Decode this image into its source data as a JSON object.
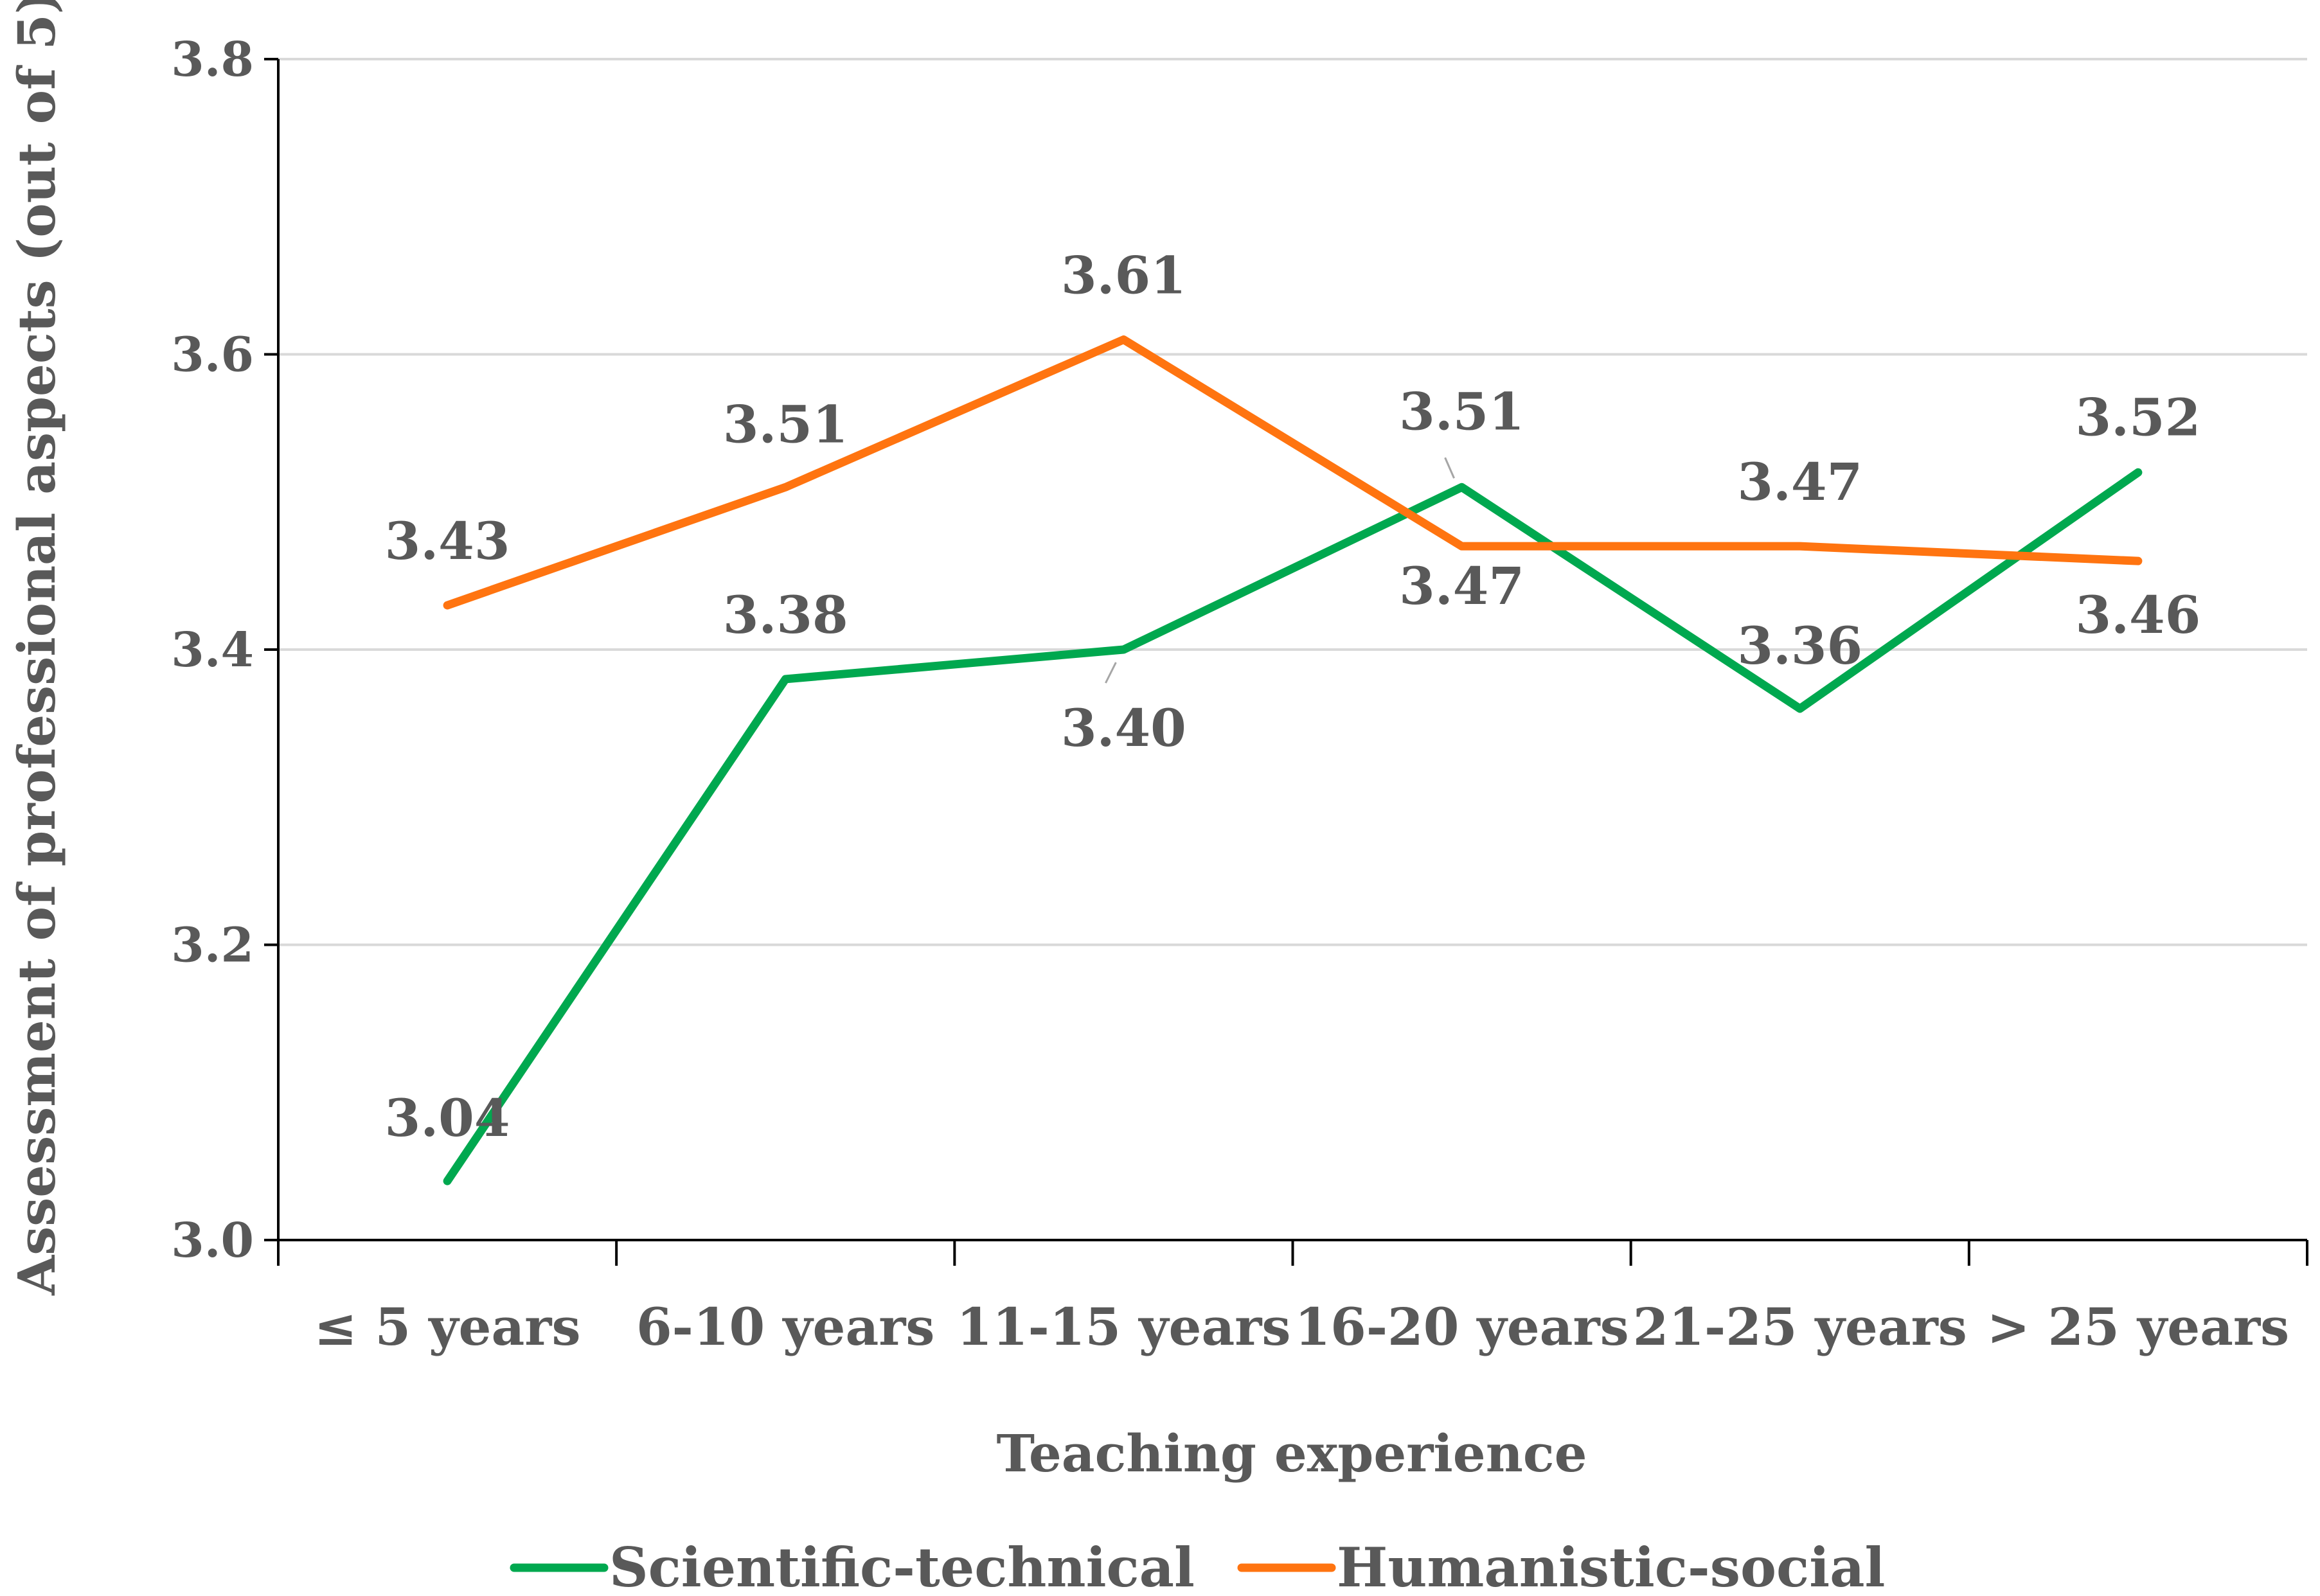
{
  "chart_data": {
    "type": "line",
    "title": "",
    "xlabel": "Teaching experience",
    "ylabel": "Assessment of professional aspects (out of 5)",
    "ylim": [
      3.0,
      3.8
    ],
    "yticks": [
      3.0,
      3.2,
      3.4,
      3.6,
      3.8
    ],
    "ytick_labels": [
      "3.0",
      "3.2",
      "3.4",
      "3.6",
      "3.8"
    ],
    "categories": [
      "≤ 5 years",
      "6-10 years",
      "11-15 years",
      "16-20 years",
      "21-25 years",
      "> 25 years"
    ],
    "grid": true,
    "legend_position": "bottom",
    "series": [
      {
        "name": "Scientific-technical",
        "color": "#00a84f",
        "values": [
          3.04,
          3.38,
          3.4,
          3.51,
          3.36,
          3.52
        ],
        "labels": [
          "3.04",
          "3.38",
          "3.40",
          "3.51",
          "3.36",
          "3.52"
        ]
      },
      {
        "name": "Humanistic-social",
        "color": "#ff7410",
        "values": [
          3.43,
          3.51,
          3.61,
          3.47,
          3.47,
          3.46
        ],
        "labels": [
          "3.43",
          "3.51",
          "3.61",
          "3.47",
          "3.47",
          "3.46"
        ]
      }
    ]
  }
}
